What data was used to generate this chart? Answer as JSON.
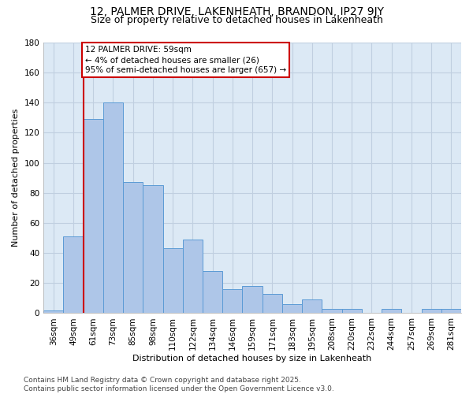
{
  "title": "12, PALMER DRIVE, LAKENHEATH, BRANDON, IP27 9JY",
  "subtitle": "Size of property relative to detached houses in Lakenheath",
  "xlabel": "Distribution of detached houses by size in Lakenheath",
  "ylabel": "Number of detached properties",
  "categories": [
    "36sqm",
    "49sqm",
    "61sqm",
    "73sqm",
    "85sqm",
    "98sqm",
    "110sqm",
    "122sqm",
    "134sqm",
    "146sqm",
    "159sqm",
    "171sqm",
    "183sqm",
    "195sqm",
    "208sqm",
    "220sqm",
    "232sqm",
    "244sqm",
    "257sqm",
    "269sqm",
    "281sqm"
  ],
  "values": [
    2,
    51,
    129,
    140,
    87,
    85,
    43,
    49,
    28,
    16,
    18,
    13,
    6,
    9,
    3,
    3,
    0,
    3,
    0,
    3,
    3
  ],
  "bar_color": "#aec6e8",
  "bar_edge_color": "#5b9bd5",
  "vline_x": 1.5,
  "vline_color": "#cc0000",
  "annotation_lines": [
    "12 PALMER DRIVE: 59sqm",
    "← 4% of detached houses are smaller (26)",
    "95% of semi-detached houses are larger (657) →"
  ],
  "annotation_box_color": "#cc0000",
  "ylim": [
    0,
    180
  ],
  "yticks": [
    0,
    20,
    40,
    60,
    80,
    100,
    120,
    140,
    160,
    180
  ],
  "grid_color": "#c0cfe0",
  "background_color": "#dce9f5",
  "footnote": "Contains HM Land Registry data © Crown copyright and database right 2025.\nContains public sector information licensed under the Open Government Licence v3.0.",
  "title_fontsize": 10,
  "subtitle_fontsize": 9,
  "axis_label_fontsize": 8,
  "tick_fontsize": 7.5,
  "annotation_fontsize": 7.5,
  "footnote_fontsize": 6.5
}
